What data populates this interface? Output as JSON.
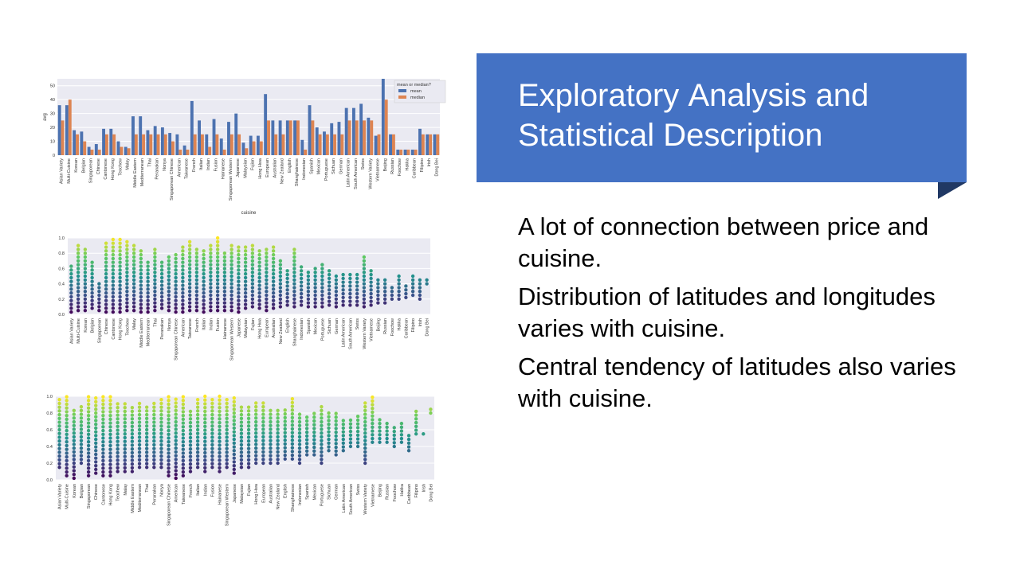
{
  "slide": {
    "title_words": [
      "Exploratory",
      "Analysis",
      "and",
      "Statistical",
      "Description"
    ],
    "bullets": [
      "A lot of connection between price and cuisine.",
      "Distribution of latitudes and longitudes varies with cuisine.",
      "Central tendency of latitudes also varies with cuisine."
    ],
    "colors": {
      "title_bg": "#4472c4",
      "fold": "#203864",
      "chart_bg": "#eaeaf2",
      "mean": "#4c72b0",
      "median": "#dd8452"
    }
  },
  "chart_data": [
    {
      "type": "bar",
      "xlabel": "cuisine",
      "ylabel": "avg",
      "ylim": [
        0,
        55
      ],
      "yticks": [
        0,
        10,
        20,
        30,
        40,
        50
      ],
      "legend": {
        "title": "mean or median?",
        "placement": "top-right"
      },
      "categories": [
        "Asian Variety",
        "Multi-Cuisine",
        "Korean",
        "Belgian",
        "Singaporean",
        "Chinese",
        "Cantonese",
        "Hong Kong",
        "Teochew",
        "Malay",
        "Middle Eastern",
        "Mediterranean",
        "Thai",
        "Peranakan",
        "Nonya",
        "Singaporean Chinese",
        "American",
        "Taiwanese",
        "French",
        "Italian",
        "Indian",
        "Fusion",
        "Hainanese",
        "Singaporean Western",
        "Japanese",
        "Malaysian",
        "Fujian",
        "Hong Hwa",
        "European",
        "Australian",
        "New Zealand",
        "English",
        "Shanghainese",
        "Indonesian",
        "Spanish",
        "Mexican",
        "Portuguese",
        "Sichuan",
        "German",
        "Latin American",
        "South American",
        "Swiss",
        "Western Variety",
        "Vietnamese",
        "Beijing",
        "Russian",
        "Foochow",
        "Hakka",
        "Caribbean",
        "Filipino",
        "Irish",
        "Dong Bei"
      ],
      "series": [
        {
          "name": "mean",
          "values": [
            36,
            36,
            18,
            17,
            6,
            8,
            19,
            19,
            10,
            6,
            28,
            28,
            18,
            21,
            20,
            16,
            15,
            7,
            39,
            25,
            15,
            26,
            12,
            24,
            30,
            9,
            14,
            14,
            44,
            25,
            25,
            25,
            25,
            11,
            36,
            20,
            17,
            23,
            24,
            34,
            34,
            37,
            27,
            14,
            55,
            15,
            4,
            4,
            4,
            19,
            15,
            15
          ]
        },
        {
          "name": "median",
          "values": [
            25,
            40,
            15,
            10,
            4,
            4,
            15,
            15,
            6,
            5,
            15,
            15,
            15,
            15,
            15,
            10,
            4,
            4,
            15,
            15,
            6,
            15,
            4,
            15,
            15,
            5,
            10,
            10,
            25,
            15,
            15,
            25,
            25,
            4,
            25,
            15,
            15,
            15,
            15,
            25,
            25,
            25,
            25,
            15,
            40,
            15,
            4,
            4,
            4,
            15,
            15,
            15
          ]
        }
      ]
    },
    {
      "type": "scatter",
      "ylim": [
        0,
        1
      ],
      "yticks": [
        "0.0",
        "0.2",
        "0.4",
        "0.6",
        "0.8",
        "1.0"
      ],
      "categories": [
        "Asian Variety",
        "Multi-Cuisine",
        "Korean",
        "Belgian",
        "Singaporean",
        "Chinese",
        "Cantonese",
        "Hong Kong",
        "Teochew",
        "Malay",
        "Middle Eastern",
        "Mediterranean",
        "Thai",
        "Peranakan",
        "Nonya",
        "Singaporean Chinese",
        "American",
        "Taiwanese",
        "French",
        "Italian",
        "Indian",
        "Fusion",
        "Hainanese",
        "Singaporean Western",
        "Japanese",
        "Malaysian",
        "Fujian",
        "Hong Hwa",
        "European",
        "Australian",
        "New Zealand",
        "English",
        "Shanghainese",
        "Indonesian",
        "Spanish",
        "Mexican",
        "Portuguese",
        "Sichuan",
        "German",
        "Latin American",
        "South American",
        "Swiss",
        "Western Variety",
        "Vietnamese",
        "Beijing",
        "Russian",
        "Foochow",
        "Hakka",
        "Caribbean",
        "Filipino",
        "Irish",
        "Dong Bei"
      ],
      "min": [
        0.03,
        0.05,
        0.05,
        0.08,
        0.05,
        0.03,
        0.03,
        0.03,
        0.05,
        0.05,
        0.03,
        0.03,
        0.05,
        0.08,
        0.05,
        0.03,
        0.03,
        0.05,
        0.05,
        0.03,
        0.05,
        0.05,
        0.05,
        0.05,
        0.03,
        0.08,
        0.1,
        0.08,
        0.05,
        0.08,
        0.1,
        0.12,
        0.1,
        0.12,
        0.1,
        0.1,
        0.1,
        0.12,
        0.1,
        0.12,
        0.12,
        0.12,
        0.1,
        0.12,
        0.15,
        0.15,
        0.2,
        0.2,
        0.22,
        0.25,
        0.2,
        0.4
      ],
      "max": [
        0.65,
        0.9,
        0.85,
        0.7,
        0.4,
        0.95,
        0.98,
        0.98,
        0.95,
        0.9,
        0.85,
        0.7,
        0.85,
        0.7,
        0.75,
        0.8,
        0.9,
        0.95,
        0.85,
        0.85,
        0.9,
        1.0,
        0.8,
        0.92,
        0.9,
        0.88,
        0.9,
        0.85,
        0.85,
        0.88,
        0.7,
        0.6,
        0.88,
        0.62,
        0.55,
        0.62,
        0.65,
        0.6,
        0.5,
        0.55,
        0.52,
        0.55,
        0.75,
        0.6,
        0.45,
        0.45,
        0.38,
        0.5,
        0.4,
        0.5,
        0.45,
        0.48
      ]
    },
    {
      "type": "scatter",
      "ylim": [
        0,
        1
      ],
      "yticks": [
        "0.0",
        "0.2",
        "0.4",
        "0.6",
        "0.8",
        "1.0"
      ],
      "categories": [
        "Asian Variety",
        "Multi-Cuisine",
        "Korean",
        "Belgian",
        "Singaporean",
        "Chinese",
        "Cantonese",
        "Hong Kong",
        "Teochew",
        "Malay",
        "Middle Eastern",
        "Mediterranean",
        "Thai",
        "Peranakan",
        "Nonya",
        "Singaporean Chinese",
        "American",
        "Taiwanese",
        "French",
        "Italian",
        "Indian",
        "Fusion",
        "Hainanese",
        "Singaporean Western",
        "Japanese",
        "Malaysian",
        "Fujian",
        "Hong Hwa",
        "European",
        "Australian",
        "New Zealand",
        "English",
        "Shanghainese",
        "Indonesian",
        "Spanish",
        "Mexican",
        "Portuguese",
        "Sichuan",
        "German",
        "Latin American",
        "South American",
        "Swiss",
        "Western Variety",
        "Vietnamese",
        "Beijing",
        "Russian",
        "Foochow",
        "Hakka",
        "Caribbean",
        "Filipino",
        "Irish",
        "Dong Bei"
      ],
      "min": [
        0.15,
        0.05,
        0.02,
        0.2,
        0.05,
        0.08,
        0.05,
        0.05,
        0.1,
        0.1,
        0.1,
        0.15,
        0.15,
        0.15,
        0.15,
        0.05,
        0.02,
        0.05,
        0.1,
        0.15,
        0.1,
        0.15,
        0.1,
        0.15,
        0.08,
        0.15,
        0.15,
        0.2,
        0.2,
        0.2,
        0.2,
        0.25,
        0.25,
        0.2,
        0.3,
        0.3,
        0.2,
        0.35,
        0.3,
        0.35,
        0.4,
        0.4,
        0.2,
        0.45,
        0.45,
        0.45,
        0.4,
        0.45,
        0.35,
        0.55,
        0.55,
        0.8
      ],
      "max": [
        1.0,
        1.0,
        0.85,
        0.88,
        1.0,
        1.0,
        1.0,
        1.0,
        0.92,
        0.95,
        0.88,
        0.92,
        0.88,
        0.95,
        1.0,
        1.0,
        1.0,
        1.0,
        0.85,
        1.0,
        1.0,
        1.0,
        1.0,
        1.0,
        1.0,
        0.9,
        0.88,
        0.92,
        0.92,
        0.85,
        0.85,
        0.85,
        1.0,
        0.8,
        0.75,
        0.82,
        0.9,
        0.82,
        0.8,
        0.75,
        0.75,
        0.78,
        0.95,
        1.0,
        0.75,
        0.7,
        0.65,
        0.68,
        0.55,
        0.85,
        0.55,
        0.85
      ]
    }
  ]
}
